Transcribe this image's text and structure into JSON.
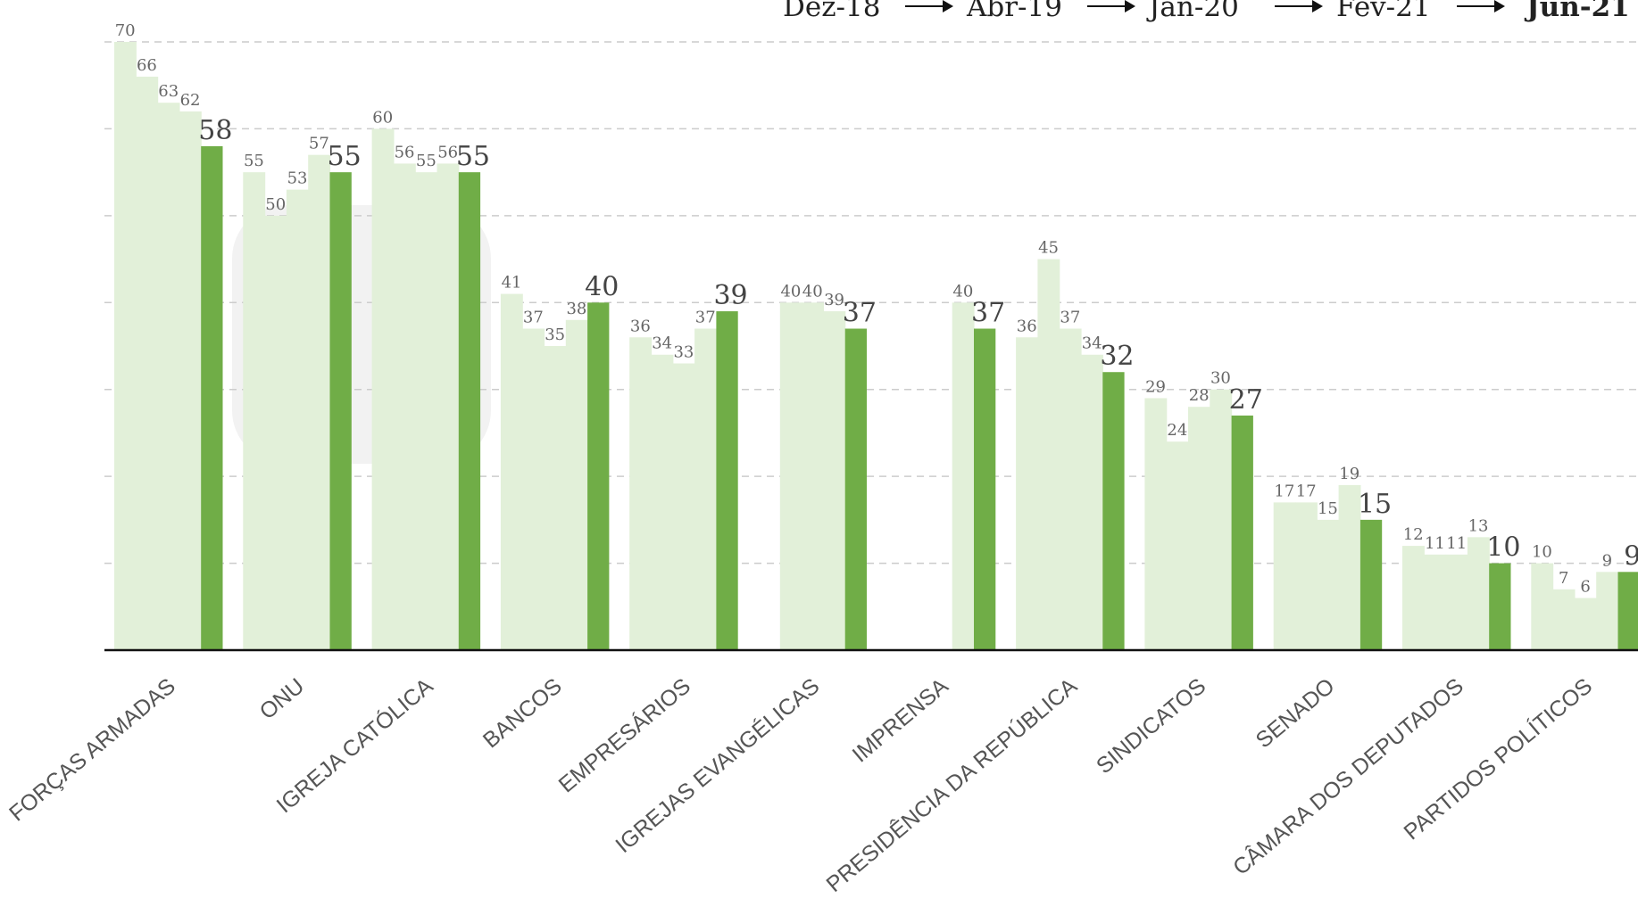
{
  "timeline": {
    "periods": [
      "Dez-18",
      "Abr-19",
      "Jan-20",
      "Fev-21",
      "Jun-21"
    ]
  },
  "colors": {
    "light_bar": "#e2f0d9",
    "dark_bar": "#70ad47",
    "grid": "#cccccc",
    "axis": "#111111",
    "label": "#666666",
    "big_label": "#444444",
    "category": "#555555"
  },
  "chart_data": {
    "type": "bar",
    "title": "",
    "xlabel": "",
    "ylabel": "",
    "ylim": [
      0,
      70
    ],
    "grid": true,
    "categories": [
      "FORÇAS ARMADAS",
      "ONU",
      "IGREJA CATÓLICA",
      "BANCOS",
      "EMPRESÁRIOS",
      "IGREJAS EVANGÉLICAS",
      "IMPRENSA",
      "PRESIDÊNCIA DA REPÚBLICA",
      "SINDICATOS",
      "SENADO",
      "CÂMARA DOS DEPUTADOS",
      "PARTIDOS POLÍTICOS"
    ],
    "series": [
      {
        "name": "Dez-18",
        "values": [
          70,
          55,
          60,
          41,
          36,
          null,
          null,
          36,
          29,
          17,
          12,
          10
        ]
      },
      {
        "name": "Abr-19",
        "values": [
          66,
          50,
          56,
          37,
          34,
          40,
          null,
          45,
          24,
          17,
          11,
          7
        ]
      },
      {
        "name": "Jan-20",
        "values": [
          63,
          53,
          55,
          35,
          33,
          40,
          null,
          37,
          28,
          15,
          11,
          6
        ]
      },
      {
        "name": "Fev-21",
        "values": [
          62,
          57,
          56,
          38,
          37,
          39,
          40,
          34,
          30,
          19,
          13,
          9
        ]
      },
      {
        "name": "Jun-21",
        "values": [
          58,
          55,
          55,
          40,
          39,
          37,
          37,
          32,
          27,
          15,
          10,
          9
        ]
      }
    ]
  }
}
